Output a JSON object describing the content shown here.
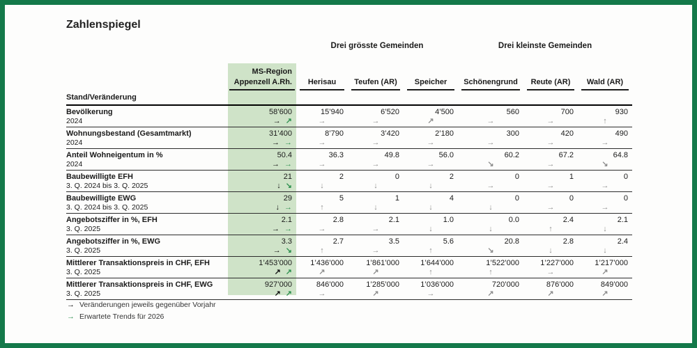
{
  "title": "Zahlenspiegel",
  "colors": {
    "frame_green": "#14794a",
    "highlight_green": "#cfe3c8",
    "arrow_gray": "#8e8e8e",
    "arrow_green": "#2f9150",
    "arrow_black": "#111111"
  },
  "groups": [
    {
      "label": "Drei grösste Gemeinden"
    },
    {
      "label": "Drei kleinste Gemeinden"
    }
  ],
  "columns": {
    "ms_header_line1": "MS-Region",
    "ms_header_line2": "Appenzell A.Rh.",
    "municipalities": [
      "Herisau",
      "Teufen (AR)",
      "Speicher",
      "Schönengrund",
      "Reute (AR)",
      "Wald (AR)"
    ]
  },
  "stand_label": "Stand/Veränderung",
  "rows": [
    {
      "label": "Bevölkerung",
      "period": "2024",
      "ms": {
        "value": "58’600",
        "arrows": [
          "right",
          "up-right"
        ]
      },
      "cells": [
        {
          "value": "15’940",
          "arrow": "right"
        },
        {
          "value": "6’520",
          "arrow": "right"
        },
        {
          "value": "4’500",
          "arrow": "up-right"
        },
        {
          "value": "560",
          "arrow": "right"
        },
        {
          "value": "700",
          "arrow": "right"
        },
        {
          "value": "930",
          "arrow": "up"
        }
      ]
    },
    {
      "label": "Wohnungsbestand (Gesamtmarkt)",
      "period": "2024",
      "ms": {
        "value": "31’400",
        "arrows": [
          "right",
          "right"
        ]
      },
      "cells": [
        {
          "value": "8’790",
          "arrow": "right"
        },
        {
          "value": "3’420",
          "arrow": "right"
        },
        {
          "value": "2’180",
          "arrow": "right"
        },
        {
          "value": "300",
          "arrow": "right"
        },
        {
          "value": "420",
          "arrow": "right"
        },
        {
          "value": "490",
          "arrow": "right"
        }
      ]
    },
    {
      "label": "Anteil Wohneigentum in %",
      "period": "2024",
      "ms": {
        "value": "50.4",
        "arrows": [
          "right",
          "right"
        ]
      },
      "cells": [
        {
          "value": "36.3",
          "arrow": "right"
        },
        {
          "value": "49.8",
          "arrow": "right"
        },
        {
          "value": "56.0",
          "arrow": "right"
        },
        {
          "value": "60.2",
          "arrow": "down-right"
        },
        {
          "value": "67.2",
          "arrow": "right"
        },
        {
          "value": "64.8",
          "arrow": "down-right"
        }
      ]
    },
    {
      "label": "Baubewilligte EFH",
      "period": "3. Q. 2024 bis 3. Q. 2025",
      "ms": {
        "value": "21",
        "arrows": [
          "down",
          "down-right"
        ]
      },
      "cells": [
        {
          "value": "2",
          "arrow": "down"
        },
        {
          "value": "0",
          "arrow": "down"
        },
        {
          "value": "2",
          "arrow": "down"
        },
        {
          "value": "0",
          "arrow": "right"
        },
        {
          "value": "1",
          "arrow": "right"
        },
        {
          "value": "0",
          "arrow": "right"
        }
      ]
    },
    {
      "label": "Baubewilligte EWG",
      "period": "3. Q. 2024 bis 3. Q. 2025",
      "ms": {
        "value": "29",
        "arrows": [
          "down",
          "right"
        ]
      },
      "cells": [
        {
          "value": "5",
          "arrow": "up"
        },
        {
          "value": "1",
          "arrow": "down"
        },
        {
          "value": "4",
          "arrow": "down"
        },
        {
          "value": "0",
          "arrow": "down"
        },
        {
          "value": "0",
          "arrow": "right"
        },
        {
          "value": "0",
          "arrow": "right"
        }
      ]
    },
    {
      "label": "Angebotsziffer in %, EFH",
      "period": "3. Q. 2025",
      "ms": {
        "value": "2.1",
        "arrows": [
          "right",
          "right"
        ]
      },
      "cells": [
        {
          "value": "2.8",
          "arrow": "right"
        },
        {
          "value": "2.1",
          "arrow": "right"
        },
        {
          "value": "1.0",
          "arrow": "down"
        },
        {
          "value": "0.0",
          "arrow": "down"
        },
        {
          "value": "2.4",
          "arrow": "up"
        },
        {
          "value": "2.1",
          "arrow": "down"
        }
      ]
    },
    {
      "label": "Angebotsziffer in %, EWG",
      "period": "3. Q. 2025",
      "ms": {
        "value": "3.3",
        "arrows": [
          "right",
          "down-right"
        ]
      },
      "cells": [
        {
          "value": "2.7",
          "arrow": "up"
        },
        {
          "value": "3.5",
          "arrow": "right"
        },
        {
          "value": "5.6",
          "arrow": "up"
        },
        {
          "value": "20.8",
          "arrow": "down-right"
        },
        {
          "value": "2.8",
          "arrow": "down"
        },
        {
          "value": "2.4",
          "arrow": "down"
        }
      ]
    },
    {
      "label": "Mittlerer Transaktionspreis in CHF, EFH",
      "period": "3. Q. 2025",
      "ms": {
        "value": "1’453’000",
        "arrows": [
          "up-right",
          "up-right"
        ]
      },
      "cells": [
        {
          "value": "1’436’000",
          "arrow": "up-right"
        },
        {
          "value": "1’861’000",
          "arrow": "up-right"
        },
        {
          "value": "1’644’000",
          "arrow": "up"
        },
        {
          "value": "1’522’000",
          "arrow": "up"
        },
        {
          "value": "1’227’000",
          "arrow": "right"
        },
        {
          "value": "1’217’000",
          "arrow": "up-right"
        }
      ]
    },
    {
      "label": "Mittlerer Transaktionspreis in CHF, EWG",
      "period": "3. Q. 2025",
      "ms": {
        "value": "927’000",
        "arrows": [
          "up-right",
          "up-right"
        ]
      },
      "cells": [
        {
          "value": "846’000",
          "arrow": "right"
        },
        {
          "value": "1’285’000",
          "arrow": "up-right"
        },
        {
          "value": "1’036’000",
          "arrow": "right"
        },
        {
          "value": "720’000",
          "arrow": "up-right"
        },
        {
          "value": "876’000",
          "arrow": "up-right"
        },
        {
          "value": "849’000",
          "arrow": "up-right"
        }
      ]
    }
  ],
  "legend": [
    {
      "arrow": "right",
      "color": "black",
      "text": "Veränderungen jeweils gegenüber Vorjahr"
    },
    {
      "arrow": "right",
      "color": "green",
      "text": "Erwartete Trends für 2026"
    }
  ]
}
